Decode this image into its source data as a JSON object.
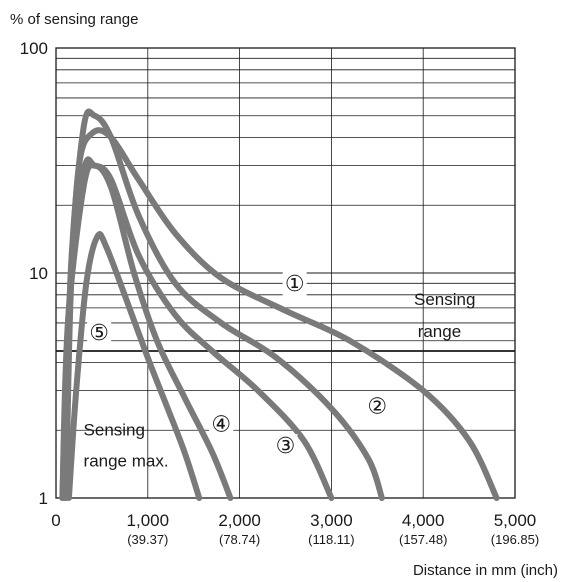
{
  "chart_data": {
    "type": "line",
    "title": "",
    "ylabel": "% of sensing range",
    "xlabel": "Distance in mm (inch)",
    "yscale": "log",
    "ylim": [
      1,
      100
    ],
    "xlim": [
      0,
      5000
    ],
    "grid": true,
    "y_ticks": [
      {
        "value": 1,
        "label": "1"
      },
      {
        "value": 10,
        "label": "10"
      },
      {
        "value": 100,
        "label": "100"
      }
    ],
    "x_ticks": [
      {
        "value": 0,
        "label": "0",
        "sub": ""
      },
      {
        "value": 1000,
        "label": "1,000",
        "sub": "(39.37)"
      },
      {
        "value": 2000,
        "label": "2,000",
        "sub": "(78.74)"
      },
      {
        "value": 3000,
        "label": "3,000",
        "sub": "(118.11)"
      },
      {
        "value": 4000,
        "label": "4,000",
        "sub": "(157.48)"
      },
      {
        "value": 5000,
        "label": "5,000",
        "sub": "(196.85)"
      }
    ],
    "reference_line": {
      "y": 4.5
    },
    "annotations": [
      {
        "text": "Sensing",
        "x": 3900,
        "y": 7.2
      },
      {
        "text": "range",
        "x": 3940,
        "y": 5.2
      },
      {
        "text": "Sensing",
        "x": 300,
        "y": 1.9
      },
      {
        "text": "range max.",
        "x": 300,
        "y": 1.38
      }
    ],
    "color": "#7a7a7a",
    "series": [
      {
        "marker": "①",
        "label_at": {
          "x": 2600,
          "y": 8.4
        },
        "points": [
          [
            110,
            1
          ],
          [
            160,
            8
          ],
          [
            250,
            30
          ],
          [
            400,
            42
          ],
          [
            600,
            40
          ],
          [
            900,
            26
          ],
          [
            1300,
            15
          ],
          [
            1800,
            9.5
          ],
          [
            2500,
            6.8
          ],
          [
            3200,
            5.0
          ],
          [
            4000,
            3.0
          ],
          [
            4500,
            1.8
          ],
          [
            4800,
            1.0
          ]
        ]
      },
      {
        "marker": "②",
        "label_at": {
          "x": 3500,
          "y": 2.4
        },
        "points": [
          [
            100,
            1
          ],
          [
            160,
            10
          ],
          [
            300,
            44
          ],
          [
            420,
            50
          ],
          [
            600,
            40
          ],
          [
            900,
            18
          ],
          [
            1300,
            9
          ],
          [
            1800,
            6
          ],
          [
            2400,
            4.2
          ],
          [
            3000,
            2.5
          ],
          [
            3400,
            1.5
          ],
          [
            3550,
            1.0
          ]
        ]
      },
      {
        "marker": "③",
        "label_at": {
          "x": 2500,
          "y": 1.6
        },
        "points": [
          [
            70,
            1
          ],
          [
            140,
            7
          ],
          [
            300,
            28
          ],
          [
            420,
            30
          ],
          [
            600,
            26
          ],
          [
            900,
            12
          ],
          [
            1300,
            6.5
          ],
          [
            1700,
            4.5
          ],
          [
            2200,
            3.0
          ],
          [
            2700,
            1.8
          ],
          [
            3000,
            1.0
          ]
        ]
      },
      {
        "marker": "④",
        "label_at": {
          "x": 1800,
          "y": 2.0
        },
        "points": [
          [
            70,
            1
          ],
          [
            130,
            6
          ],
          [
            300,
            24
          ],
          [
            420,
            30
          ],
          [
            600,
            24
          ],
          [
            850,
            10
          ],
          [
            1100,
            5
          ],
          [
            1400,
            2.8
          ],
          [
            1700,
            1.6
          ],
          [
            1900,
            1.0
          ]
        ]
      },
      {
        "marker": "⑤",
        "label_at": {
          "x": 470,
          "y": 5.1
        },
        "points": [
          [
            140,
            1
          ],
          [
            220,
            3
          ],
          [
            330,
            9
          ],
          [
            450,
            14.5
          ],
          [
            550,
            13
          ],
          [
            800,
            7
          ],
          [
            1000,
            4.2
          ],
          [
            1200,
            2.6
          ],
          [
            1400,
            1.6
          ],
          [
            1560,
            1.0
          ]
        ]
      }
    ]
  }
}
